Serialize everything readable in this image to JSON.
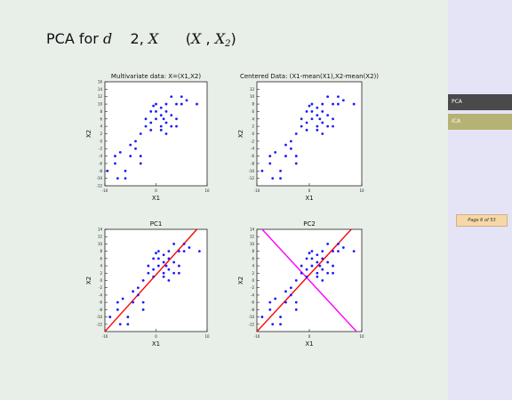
{
  "slide": {
    "title": {
      "prefix": "PCA for ",
      "var_d": "d",
      "eq": "2, ",
      "var_X": "X",
      "paren_open": "(",
      "var_X1": "X",
      "comma": " , ",
      "var_X2": "X",
      "sub2": "2",
      "paren_close": ")"
    }
  },
  "sidebar": {
    "items": [
      {
        "label": "PCA"
      },
      {
        "label": "ICA"
      }
    ],
    "page_counter": "Page 6 of 53"
  },
  "chart_data": [
    {
      "type": "scatter",
      "title": "Multivariate data: X=(X1,X2)",
      "xlabel": "X1",
      "ylabel": "X2",
      "xlim": [
        -10,
        10
      ],
      "ylim": [
        -12,
        16
      ],
      "xticks": [
        "-10",
        "0",
        "10"
      ],
      "yticks": [
        "-12",
        "-10",
        "-8",
        "-6",
        "-4",
        "-2",
        "0",
        "2",
        "4",
        "6",
        "8",
        "10",
        "12",
        "14",
        "16"
      ],
      "points": [
        [
          -9.5,
          -8
        ],
        [
          -8,
          -6
        ],
        [
          -8,
          -4
        ],
        [
          -7,
          -3
        ],
        [
          -7.5,
          -10
        ],
        [
          -6,
          -8
        ],
        [
          -6,
          -10
        ],
        [
          -5,
          -1
        ],
        [
          -5,
          -4
        ],
        [
          -4,
          0
        ],
        [
          -4,
          -2
        ],
        [
          -3,
          2
        ],
        [
          -3,
          -4
        ],
        [
          -3,
          -6
        ],
        [
          -2,
          4
        ],
        [
          -2,
          6
        ],
        [
          -1,
          8
        ],
        [
          -1,
          3
        ],
        [
          -1,
          5
        ],
        [
          0,
          6
        ],
        [
          0,
          8
        ],
        [
          0,
          10
        ],
        [
          1,
          4
        ],
        [
          1,
          9
        ],
        [
          1,
          7
        ],
        [
          1,
          3
        ],
        [
          2,
          5
        ],
        [
          2,
          2
        ],
        [
          2,
          8
        ],
        [
          2,
          10
        ],
        [
          3,
          7
        ],
        [
          3,
          12
        ],
        [
          3,
          4
        ],
        [
          4,
          10
        ],
        [
          4,
          6
        ],
        [
          4,
          4
        ],
        [
          5,
          12
        ],
        [
          5,
          10
        ],
        [
          6,
          11
        ],
        [
          8,
          10
        ],
        [
          -0.5,
          9.5
        ],
        [
          1.5,
          6
        ]
      ],
      "color": "#1a1aff"
    },
    {
      "type": "scatter",
      "title": "Centered Data: (X1-mean(X1),X2-mean(X2))",
      "xlabel": "X1",
      "ylabel": "X2",
      "xlim": [
        -10,
        10
      ],
      "ylim": [
        -14,
        14
      ],
      "xticks": [
        "-10",
        "0",
        "10"
      ],
      "yticks": [
        "-12",
        "-10",
        "-8",
        "-6",
        "-4",
        "-2",
        "0",
        "2",
        "4",
        "6",
        "8",
        "10",
        "12"
      ],
      "points": [
        [
          -9,
          -10
        ],
        [
          -7.5,
          -8
        ],
        [
          -7.5,
          -6
        ],
        [
          -6.5,
          -5
        ],
        [
          -7,
          -12
        ],
        [
          -5.5,
          -10
        ],
        [
          -5.5,
          -12
        ],
        [
          -4.5,
          -3
        ],
        [
          -4.5,
          -6
        ],
        [
          -3.5,
          -2
        ],
        [
          -3.5,
          -4
        ],
        [
          -2.5,
          0
        ],
        [
          -2.5,
          -6
        ],
        [
          -2.5,
          -8
        ],
        [
          -1.5,
          2
        ],
        [
          -1.5,
          4
        ],
        [
          -0.5,
          6
        ],
        [
          -0.5,
          1
        ],
        [
          -0.5,
          3
        ],
        [
          0.5,
          4
        ],
        [
          0.5,
          6
        ],
        [
          0.5,
          8
        ],
        [
          1.5,
          2
        ],
        [
          1.5,
          7
        ],
        [
          1.5,
          5
        ],
        [
          1.5,
          1
        ],
        [
          2.5,
          3
        ],
        [
          2.5,
          0
        ],
        [
          2.5,
          6
        ],
        [
          2.5,
          8
        ],
        [
          3.5,
          5
        ],
        [
          3.5,
          10
        ],
        [
          3.5,
          2
        ],
        [
          4.5,
          8
        ],
        [
          4.5,
          4
        ],
        [
          4.5,
          2
        ],
        [
          5.5,
          10
        ],
        [
          5.5,
          8
        ],
        [
          6.5,
          9
        ],
        [
          8.5,
          8
        ],
        [
          0,
          7.5
        ],
        [
          2,
          4
        ]
      ],
      "color": "#1a1aff"
    },
    {
      "type": "scatter",
      "title": "PC1",
      "xlabel": "X1",
      "ylabel": "X2",
      "xlim": [
        -10,
        10
      ],
      "ylim": [
        -14,
        14
      ],
      "xticks": [
        "-10",
        "0",
        "10"
      ],
      "yticks": [
        "-12",
        "-10",
        "-8",
        "-6",
        "-4",
        "-2",
        "0",
        "2",
        "4",
        "6",
        "8",
        "10",
        "12",
        "14"
      ],
      "points": [
        [
          -9,
          -10
        ],
        [
          -7.5,
          -8
        ],
        [
          -7.5,
          -6
        ],
        [
          -6.5,
          -5
        ],
        [
          -7,
          -12
        ],
        [
          -5.5,
          -10
        ],
        [
          -5.5,
          -12
        ],
        [
          -4.5,
          -3
        ],
        [
          -4.5,
          -6
        ],
        [
          -3.5,
          -2
        ],
        [
          -3.5,
          -4
        ],
        [
          -2.5,
          0
        ],
        [
          -2.5,
          -6
        ],
        [
          -2.5,
          -8
        ],
        [
          -1.5,
          2
        ],
        [
          -1.5,
          4
        ],
        [
          -0.5,
          6
        ],
        [
          -0.5,
          1
        ],
        [
          -0.5,
          3
        ],
        [
          0.5,
          4
        ],
        [
          0.5,
          6
        ],
        [
          0.5,
          8
        ],
        [
          1.5,
          2
        ],
        [
          1.5,
          7
        ],
        [
          1.5,
          5
        ],
        [
          1.5,
          1
        ],
        [
          2.5,
          3
        ],
        [
          2.5,
          0
        ],
        [
          2.5,
          6
        ],
        [
          2.5,
          8
        ],
        [
          3.5,
          5
        ],
        [
          3.5,
          10
        ],
        [
          3.5,
          2
        ],
        [
          4.5,
          8
        ],
        [
          4.5,
          4
        ],
        [
          4.5,
          2
        ],
        [
          5.5,
          10
        ],
        [
          5.5,
          8
        ],
        [
          6.5,
          9
        ],
        [
          8.5,
          8
        ],
        [
          0,
          7.5
        ],
        [
          2,
          4
        ]
      ],
      "lines": [
        {
          "from": [
            -10,
            -14
          ],
          "to": [
            8,
            14
          ],
          "color": "#ff0000"
        }
      ],
      "color": "#1a1aff"
    },
    {
      "type": "scatter",
      "title": "PC2",
      "xlabel": "X1",
      "ylabel": "X2",
      "xlim": [
        -10,
        10
      ],
      "ylim": [
        -14,
        14
      ],
      "xticks": [
        "-10",
        "0",
        "10"
      ],
      "yticks": [
        "-12",
        "-10",
        "-8",
        "-6",
        "-4",
        "-2",
        "0",
        "2",
        "4",
        "6",
        "8",
        "10",
        "12",
        "14"
      ],
      "points": [
        [
          -9,
          -10
        ],
        [
          -7.5,
          -8
        ],
        [
          -7.5,
          -6
        ],
        [
          -6.5,
          -5
        ],
        [
          -7,
          -12
        ],
        [
          -5.5,
          -10
        ],
        [
          -5.5,
          -12
        ],
        [
          -4.5,
          -3
        ],
        [
          -4.5,
          -6
        ],
        [
          -3.5,
          -2
        ],
        [
          -3.5,
          -4
        ],
        [
          -2.5,
          0
        ],
        [
          -2.5,
          -6
        ],
        [
          -2.5,
          -8
        ],
        [
          -1.5,
          2
        ],
        [
          -1.5,
          4
        ],
        [
          -0.5,
          6
        ],
        [
          -0.5,
          1
        ],
        [
          -0.5,
          3
        ],
        [
          0.5,
          4
        ],
        [
          0.5,
          6
        ],
        [
          0.5,
          8
        ],
        [
          1.5,
          2
        ],
        [
          1.5,
          7
        ],
        [
          1.5,
          5
        ],
        [
          1.5,
          1
        ],
        [
          2.5,
          3
        ],
        [
          2.5,
          0
        ],
        [
          2.5,
          6
        ],
        [
          2.5,
          8
        ],
        [
          3.5,
          5
        ],
        [
          3.5,
          10
        ],
        [
          3.5,
          2
        ],
        [
          4.5,
          8
        ],
        [
          4.5,
          4
        ],
        [
          4.5,
          2
        ],
        [
          5.5,
          10
        ],
        [
          5.5,
          8
        ],
        [
          6.5,
          9
        ],
        [
          8.5,
          8
        ],
        [
          0,
          7.5
        ],
        [
          2,
          4
        ]
      ],
      "lines": [
        {
          "from": [
            -10,
            -14
          ],
          "to": [
            8,
            14
          ],
          "color": "#ff0000"
        },
        {
          "from": [
            -9,
            14
          ],
          "to": [
            9,
            -14
          ],
          "color": "#ff00ff"
        }
      ],
      "color": "#1a1aff"
    }
  ]
}
